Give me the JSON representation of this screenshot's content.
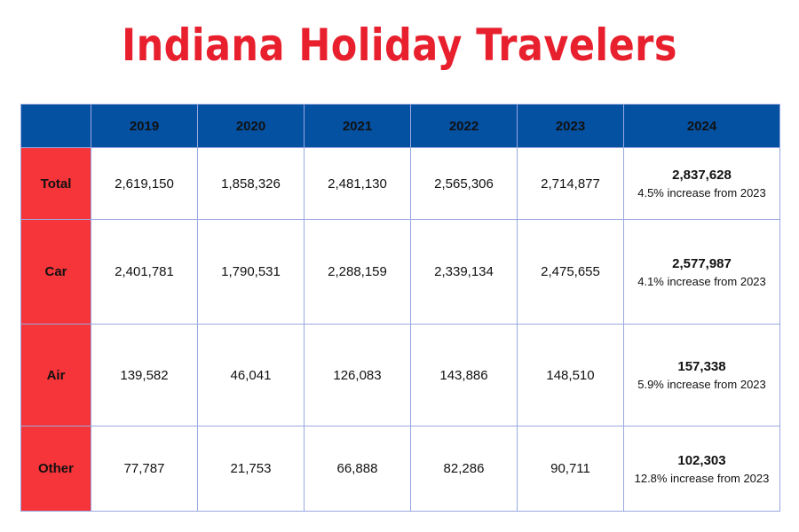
{
  "title": "Indiana Holiday Travelers",
  "chart_data": {
    "type": "table",
    "title": "Indiana Holiday Travelers",
    "columns": [
      "",
      "2019",
      "2020",
      "2021",
      "2022",
      "2023",
      "2024"
    ],
    "rows": [
      {
        "label": "Total",
        "values": [
          "2,619,150",
          "1,858,326",
          "2,481,130",
          "2,565,306",
          "2,714,877",
          "2,837,628"
        ],
        "note": "4.5% increase from 2023"
      },
      {
        "label": "Car",
        "values": [
          "2,401,781",
          "1,790,531",
          "2,288,159",
          "2,339,134",
          "2,475,655",
          "2,577,987"
        ],
        "note": "4.1% increase from 2023"
      },
      {
        "label": "Air",
        "values": [
          "139,582",
          "46,041",
          "126,083",
          "143,886",
          "148,510",
          "157,338"
        ],
        "note": "5.9% increase from 2023"
      },
      {
        "label": "Other",
        "values": [
          "77,787",
          "21,753",
          "66,888",
          "82,286",
          "90,711",
          "102,303"
        ],
        "note": "12.8% increase from 2023"
      }
    ]
  },
  "colors": {
    "title": "#e8202e",
    "header_bg": "#0450a1",
    "row_header_bg": "#f6353a",
    "grid_line": "#9aa8e0"
  }
}
